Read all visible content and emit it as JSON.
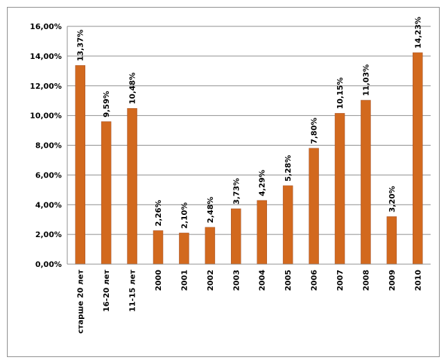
{
  "chart_data": {
    "type": "bar",
    "title": "",
    "xlabel": "",
    "ylabel": "",
    "categories": [
      "старше 20 лет",
      "16-20 лет",
      "11-15 лет",
      "2000",
      "2001",
      "2002",
      "2003",
      "2004",
      "2005",
      "2006",
      "2007",
      "2008",
      "2009",
      "2010"
    ],
    "values": [
      13.37,
      9.59,
      10.48,
      2.26,
      2.1,
      2.48,
      3.73,
      4.29,
      5.28,
      7.8,
      10.15,
      11.03,
      3.2,
      14.23
    ],
    "data_labels": [
      "13,37%",
      "9,59%",
      "10,48%",
      "2,26%",
      "2,10%",
      "2,48%",
      "3,73%",
      "4,29%",
      "5,28%",
      "7,80%",
      "10,15%",
      "11,03%",
      "3,20%",
      "14,23%"
    ],
    "ylim": [
      0,
      16
    ],
    "y_ticks": [
      0,
      2,
      4,
      6,
      8,
      10,
      12,
      14,
      16
    ],
    "y_tick_labels": [
      "0,00%",
      "2,00%",
      "4,00%",
      "6,00%",
      "8,00%",
      "10,00%",
      "12,00%",
      "14,00%",
      "16,00%"
    ],
    "grid": true,
    "legend": "none",
    "bar_color": "#D2691E",
    "bar_edge_color": "#A0522D"
  }
}
